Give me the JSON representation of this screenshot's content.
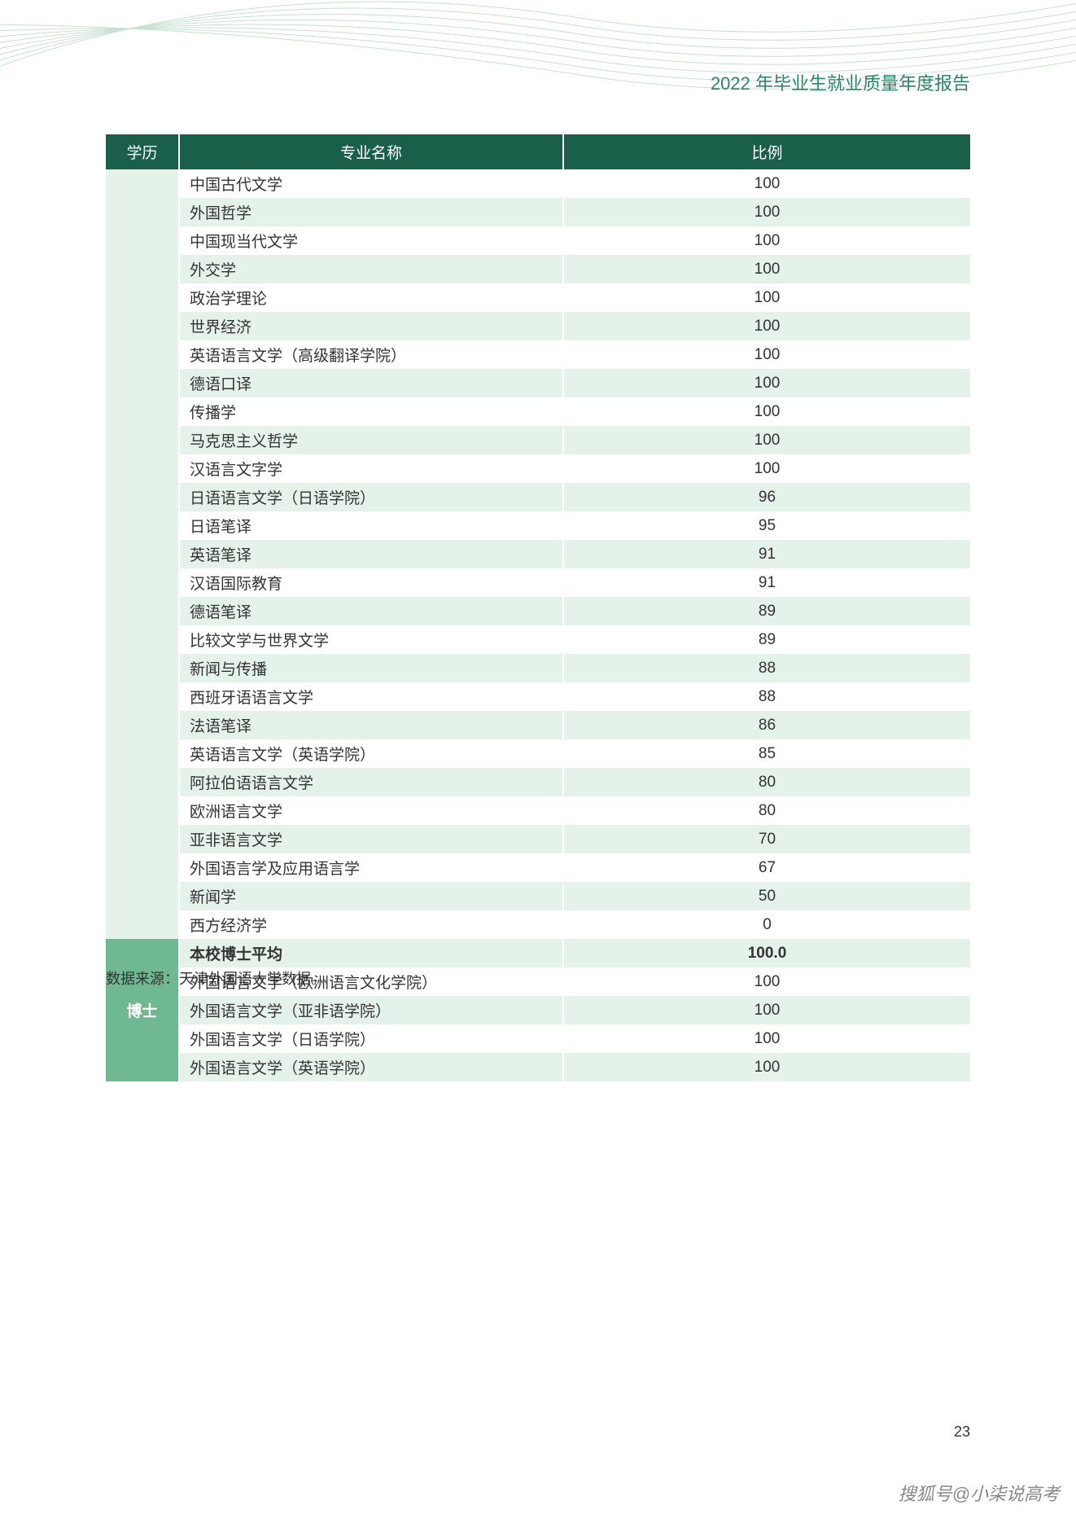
{
  "header": {
    "title": "2022 年毕业生就业质量年度报告"
  },
  "table": {
    "columns": [
      "学历",
      "专业名称",
      "比例"
    ],
    "section1_rows": [
      {
        "major": "中国古代文学",
        "ratio": "100"
      },
      {
        "major": "外国哲学",
        "ratio": "100"
      },
      {
        "major": "中国现当代文学",
        "ratio": "100"
      },
      {
        "major": "外交学",
        "ratio": "100"
      },
      {
        "major": "政治学理论",
        "ratio": "100"
      },
      {
        "major": "世界经济",
        "ratio": "100"
      },
      {
        "major": "英语语言文学（高级翻译学院）",
        "ratio": "100"
      },
      {
        "major": "德语口译",
        "ratio": "100"
      },
      {
        "major": "传播学",
        "ratio": "100"
      },
      {
        "major": "马克思主义哲学",
        "ratio": "100"
      },
      {
        "major": "汉语言文字学",
        "ratio": "100"
      },
      {
        "major": "日语语言文学（日语学院）",
        "ratio": "96"
      },
      {
        "major": "日语笔译",
        "ratio": "95"
      },
      {
        "major": "英语笔译",
        "ratio": "91"
      },
      {
        "major": "汉语国际教育",
        "ratio": "91"
      },
      {
        "major": "德语笔译",
        "ratio": "89"
      },
      {
        "major": "比较文学与世界文学",
        "ratio": "89"
      },
      {
        "major": "新闻与传播",
        "ratio": "88"
      },
      {
        "major": "西班牙语语言文学",
        "ratio": "88"
      },
      {
        "major": "法语笔译",
        "ratio": "86"
      },
      {
        "major": "英语语言文学（英语学院）",
        "ratio": "85"
      },
      {
        "major": "阿拉伯语语言文学",
        "ratio": "80"
      },
      {
        "major": "欧洲语言文学",
        "ratio": "80"
      },
      {
        "major": "亚非语言文学",
        "ratio": "70"
      },
      {
        "major": "外国语言学及应用语言学",
        "ratio": "67"
      },
      {
        "major": "新闻学",
        "ratio": "50"
      },
      {
        "major": "西方经济学",
        "ratio": "0"
      }
    ],
    "section2": {
      "degree_label": "博士",
      "avg_row": {
        "major": "本校博士平均",
        "ratio": "100.0"
      },
      "rows": [
        {
          "major": "外国语言文学（欧洲语言文化学院）",
          "ratio": "100"
        },
        {
          "major": "外国语言文学（亚非语学院）",
          "ratio": "100"
        },
        {
          "major": "外国语言文学（日语学院）",
          "ratio": "100"
        },
        {
          "major": "外国语言文学（英语学院）",
          "ratio": "100"
        }
      ]
    }
  },
  "footer": {
    "data_source": "数据来源：天津外国语大学数据。",
    "page_number": "23",
    "watermark": "搜狐号@小柒说高考"
  },
  "colors": {
    "header_bg": "#1a5f4a",
    "header_text": "#ffffff",
    "degree_cell_bg": "#6fb892",
    "row_even_bg": "#e5f2ea",
    "row_odd_bg": "#ffffff",
    "text_color": "#333333",
    "page_title_color": "#2d8468"
  }
}
